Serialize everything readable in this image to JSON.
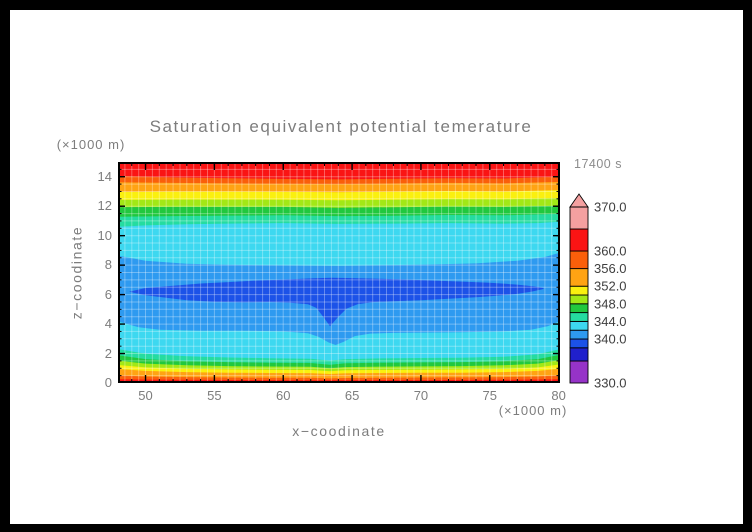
{
  "window": {
    "border_color": "#000000",
    "canvas_color": "#ffffff"
  },
  "chart_data": {
    "type": "filled-contour",
    "title": "Saturation equivalent potential temerature",
    "time_label": "17400 s",
    "xlabel": "x−coodinate",
    "ylabel": "z−coodinate",
    "x_unit_label": "(×1000 m)",
    "y_unit_label": "(×1000 m)",
    "text_color": "#7d7d7d",
    "xlim": [
      48,
      80.1
    ],
    "ylim": [
      0,
      15
    ],
    "xticks": [
      50,
      55,
      60,
      65,
      70,
      75,
      80
    ],
    "x_minor_step": 1,
    "yticks": [
      0,
      2,
      4,
      6,
      8,
      10,
      12,
      14
    ],
    "y_minor_step": 0.5,
    "grid_step": 0.5,
    "grid_color": "rgba(255,255,255,0.32)",
    "colorbar": {
      "levels": [
        330,
        335,
        338,
        340,
        342,
        344,
        346,
        348,
        350,
        352,
        356,
        360,
        365,
        370
      ],
      "colors": [
        "#9633C8",
        "#2020CC",
        "#1C52E8",
        "#2E9AF0",
        "#3DD8F0",
        "#25DCA0",
        "#21C83E",
        "#A2E816",
        "#FAF00F",
        "#FFA313",
        "#FA5F0A",
        "#FA1414",
        "#F4A0A0"
      ],
      "labeled_levels": [
        370,
        360,
        356,
        352,
        348,
        344,
        340,
        330
      ],
      "over_arrow_color": "#F4A0A0",
      "range": [
        330,
        370
      ]
    },
    "regions": [
      {
        "name": "background-cyan",
        "range": [
          342,
          344
        ],
        "color": "#3DD8F0",
        "type": "fill",
        "points": []
      },
      {
        "name": "top-stripe-spring",
        "range": [
          344,
          346
        ],
        "color": "#25DCA0",
        "type": "above",
        "points": [
          [
            48,
            10.6
          ],
          [
            50,
            10.7
          ],
          [
            53,
            10.78
          ],
          [
            56,
            10.82
          ],
          [
            60,
            10.85
          ],
          [
            64,
            10.8
          ],
          [
            68,
            10.82
          ],
          [
            72,
            10.85
          ],
          [
            76,
            10.82
          ],
          [
            78.5,
            10.85
          ],
          [
            80.1,
            10.95
          ]
        ]
      },
      {
        "name": "top-stripe-green",
        "range": [
          346,
          348
        ],
        "color": "#21C83E",
        "type": "above",
        "points": [
          [
            48,
            11.28
          ],
          [
            52,
            11.33
          ],
          [
            56,
            11.36
          ],
          [
            60,
            11.38
          ],
          [
            64,
            11.33
          ],
          [
            68,
            11.35
          ],
          [
            72,
            11.4
          ],
          [
            76,
            11.38
          ],
          [
            80.1,
            11.48
          ]
        ]
      },
      {
        "name": "top-stripe-chartreuse",
        "range": [
          348,
          350
        ],
        "color": "#A2E816",
        "type": "above",
        "points": [
          [
            48,
            11.93
          ],
          [
            52,
            11.95
          ],
          [
            56,
            11.95
          ],
          [
            60,
            11.95
          ],
          [
            64,
            11.9
          ],
          [
            68,
            11.93
          ],
          [
            72,
            11.97
          ],
          [
            76,
            11.95
          ],
          [
            80.1,
            12.03
          ]
        ]
      },
      {
        "name": "top-stripe-yellow",
        "range": [
          350,
          352
        ],
        "color": "#FAF00F",
        "type": "above",
        "points": [
          [
            48,
            12.42
          ],
          [
            52,
            12.45
          ],
          [
            56,
            12.45
          ],
          [
            60,
            12.44
          ],
          [
            64,
            12.4
          ],
          [
            68,
            12.44
          ],
          [
            72,
            12.48
          ],
          [
            76,
            12.46
          ],
          [
            80.1,
            12.55
          ]
        ]
      },
      {
        "name": "top-stripe-orange",
        "range": [
          352,
          356
        ],
        "color": "#FFA313",
        "type": "above",
        "points": [
          [
            48,
            12.97
          ],
          [
            52,
            13.0
          ],
          [
            56,
            13.0
          ],
          [
            60,
            12.98
          ],
          [
            64,
            12.95
          ],
          [
            68,
            12.99
          ],
          [
            72,
            13.03
          ],
          [
            76,
            13.0
          ],
          [
            80.1,
            13.1
          ]
        ]
      },
      {
        "name": "top-stripe-orangered",
        "range": [
          356,
          360
        ],
        "color": "#FA5F0A",
        "type": "above",
        "points": [
          [
            48,
            13.62
          ],
          [
            52,
            13.58
          ],
          [
            56,
            13.55
          ],
          [
            60,
            13.52
          ],
          [
            64,
            13.5
          ],
          [
            68,
            13.54
          ],
          [
            72,
            13.58
          ],
          [
            76,
            13.55
          ],
          [
            80.1,
            13.65
          ]
        ]
      },
      {
        "name": "top-stripe-red",
        "range": [
          360,
          365
        ],
        "color": "#FA1414",
        "type": "above",
        "points": [
          [
            48,
            14.05
          ],
          [
            52,
            13.95
          ],
          [
            56,
            13.9
          ],
          [
            60,
            13.85
          ],
          [
            64,
            13.82
          ],
          [
            68,
            13.86
          ],
          [
            72,
            13.9
          ],
          [
            76,
            13.88
          ],
          [
            80.1,
            14.0
          ]
        ]
      },
      {
        "name": "midlevel-lightblue",
        "range": [
          340,
          342
        ],
        "color": "#2E9AF0",
        "type": "poly",
        "points": [
          [
            48,
            8.65
          ],
          [
            50,
            8.3
          ],
          [
            53,
            8.1
          ],
          [
            56,
            8.02
          ],
          [
            60,
            7.98
          ],
          [
            64,
            7.95
          ],
          [
            68,
            8.0
          ],
          [
            71,
            8.05
          ],
          [
            74,
            8.12
          ],
          [
            77,
            8.3
          ],
          [
            79,
            8.55
          ],
          [
            80.1,
            8.85
          ],
          [
            80.1,
            4.2
          ],
          [
            79.2,
            3.85
          ],
          [
            78,
            3.62
          ],
          [
            76,
            3.5
          ],
          [
            73,
            3.45
          ],
          [
            70,
            3.42
          ],
          [
            68,
            3.4
          ],
          [
            66.3,
            3.35
          ],
          [
            65.2,
            3.18
          ],
          [
            64.4,
            2.8
          ],
          [
            63.8,
            2.58
          ],
          [
            63.3,
            2.75
          ],
          [
            62.6,
            3.12
          ],
          [
            61.8,
            3.38
          ],
          [
            60,
            3.5
          ],
          [
            57,
            3.55
          ],
          [
            54,
            3.55
          ],
          [
            51,
            3.62
          ],
          [
            49.5,
            3.78
          ],
          [
            48,
            4.18
          ]
        ]
      },
      {
        "name": "theta-minimum-blob-blue",
        "range": [
          338,
          340
        ],
        "color": "#1C52E8",
        "type": "poly",
        "points": [
          [
            48.8,
            6.2
          ],
          [
            50,
            6.45
          ],
          [
            52,
            6.6
          ],
          [
            54,
            6.75
          ],
          [
            56,
            6.85
          ],
          [
            58,
            6.95
          ],
          [
            60,
            7.02
          ],
          [
            62,
            7.1
          ],
          [
            63.5,
            7.15
          ],
          [
            65,
            7.12
          ],
          [
            67,
            7.08
          ],
          [
            69,
            7.02
          ],
          [
            71,
            6.95
          ],
          [
            73,
            6.88
          ],
          [
            75,
            6.8
          ],
          [
            77,
            6.68
          ],
          [
            78.3,
            6.55
          ],
          [
            78.9,
            6.45
          ],
          [
            78.9,
            6.38
          ],
          [
            78,
            6.2
          ],
          [
            77,
            6.05
          ],
          [
            75.5,
            5.92
          ],
          [
            74,
            5.82
          ],
          [
            72,
            5.72
          ],
          [
            70,
            5.62
          ],
          [
            68,
            5.55
          ],
          [
            66.6,
            5.5
          ],
          [
            65.4,
            5.35
          ],
          [
            64.6,
            5.05
          ],
          [
            64.0,
            4.5
          ],
          [
            63.4,
            3.85
          ],
          [
            62.9,
            4.5
          ],
          [
            62.4,
            5.1
          ],
          [
            61.8,
            5.35
          ],
          [
            60.5,
            5.45
          ],
          [
            59,
            5.5
          ],
          [
            57,
            5.47
          ],
          [
            55,
            5.52
          ],
          [
            53,
            5.62
          ],
          [
            51.5,
            5.78
          ],
          [
            50,
            5.95
          ],
          [
            48.8,
            6.2
          ]
        ]
      },
      {
        "name": "bottom-stripe-spring",
        "range": [
          344,
          346
        ],
        "color": "#25DCA0",
        "type": "below",
        "points": [
          [
            48,
            2.3
          ],
          [
            50,
            1.98
          ],
          [
            53,
            1.82
          ],
          [
            56,
            1.73
          ],
          [
            59,
            1.68
          ],
          [
            62,
            1.65
          ],
          [
            63.4,
            1.52
          ],
          [
            64.5,
            1.62
          ],
          [
            67,
            1.67
          ],
          [
            70,
            1.7
          ],
          [
            73,
            1.72
          ],
          [
            76,
            1.78
          ],
          [
            78.5,
            1.95
          ],
          [
            80.1,
            2.3
          ]
        ]
      },
      {
        "name": "bottom-stripe-green",
        "range": [
          346,
          348
        ],
        "color": "#21C83E",
        "type": "below",
        "points": [
          [
            48,
            1.88
          ],
          [
            50,
            1.62
          ],
          [
            53,
            1.48
          ],
          [
            56,
            1.42
          ],
          [
            59,
            1.38
          ],
          [
            62,
            1.36
          ],
          [
            63.4,
            1.24
          ],
          [
            64.5,
            1.34
          ],
          [
            67,
            1.38
          ],
          [
            70,
            1.4
          ],
          [
            73,
            1.42
          ],
          [
            76,
            1.48
          ],
          [
            78.5,
            1.62
          ],
          [
            80.1,
            1.92
          ]
        ]
      },
      {
        "name": "bottom-stripe-chartreuse",
        "range": [
          348,
          350
        ],
        "color": "#A2E816",
        "type": "below",
        "points": [
          [
            48,
            1.52
          ],
          [
            50,
            1.32
          ],
          [
            53,
            1.21
          ],
          [
            56,
            1.15
          ],
          [
            59,
            1.12
          ],
          [
            62,
            1.1
          ],
          [
            63.4,
            1.0
          ],
          [
            64.5,
            1.08
          ],
          [
            67,
            1.11
          ],
          [
            70,
            1.13
          ],
          [
            73,
            1.15
          ],
          [
            76,
            1.2
          ],
          [
            78.5,
            1.32
          ],
          [
            80.1,
            1.56
          ]
        ]
      },
      {
        "name": "bottom-stripe-yellow",
        "range": [
          350,
          352
        ],
        "color": "#FAF00F",
        "type": "below",
        "points": [
          [
            48,
            1.22
          ],
          [
            50,
            1.06
          ],
          [
            53,
            0.97
          ],
          [
            56,
            0.92
          ],
          [
            59,
            0.9
          ],
          [
            62,
            0.88
          ],
          [
            63.4,
            0.8
          ],
          [
            64.5,
            0.87
          ],
          [
            67,
            0.89
          ],
          [
            70,
            0.9
          ],
          [
            73,
            0.92
          ],
          [
            76,
            0.96
          ],
          [
            78.5,
            1.06
          ],
          [
            80.1,
            1.26
          ]
        ]
      },
      {
        "name": "bottom-stripe-orange",
        "range": [
          352,
          356
        ],
        "color": "#FFA313",
        "type": "below",
        "points": [
          [
            48,
            0.95
          ],
          [
            50,
            0.82
          ],
          [
            53,
            0.74
          ],
          [
            56,
            0.7
          ],
          [
            59,
            0.68
          ],
          [
            62,
            0.67
          ],
          [
            63.4,
            0.61
          ],
          [
            64.5,
            0.66
          ],
          [
            67,
            0.68
          ],
          [
            70,
            0.69
          ],
          [
            73,
            0.7
          ],
          [
            76,
            0.74
          ],
          [
            78.5,
            0.82
          ],
          [
            80.1,
            0.97
          ]
        ]
      },
      {
        "name": "bottom-stripe-orangered",
        "range": [
          356,
          360
        ],
        "color": "#FA5F0A",
        "type": "below",
        "points": [
          [
            48,
            0.52
          ],
          [
            50,
            0.44
          ],
          [
            53,
            0.4
          ],
          [
            56,
            0.37
          ],
          [
            59,
            0.36
          ],
          [
            62,
            0.35
          ],
          [
            63.4,
            0.31
          ],
          [
            64.5,
            0.34
          ],
          [
            67,
            0.36
          ],
          [
            70,
            0.37
          ],
          [
            73,
            0.38
          ],
          [
            76,
            0.4
          ],
          [
            78.5,
            0.44
          ],
          [
            80.1,
            0.53
          ]
        ]
      },
      {
        "name": "bottom-stripe-red",
        "range": [
          360,
          365
        ],
        "color": "#FA1414",
        "type": "below",
        "points": [
          [
            48,
            0.26
          ],
          [
            50,
            0.23
          ],
          [
            54,
            0.21
          ],
          [
            58,
            0.2
          ],
          [
            62,
            0.19
          ],
          [
            66,
            0.2
          ],
          [
            70,
            0.2
          ],
          [
            74,
            0.21
          ],
          [
            78,
            0.23
          ],
          [
            80.1,
            0.26
          ]
        ]
      }
    ]
  }
}
